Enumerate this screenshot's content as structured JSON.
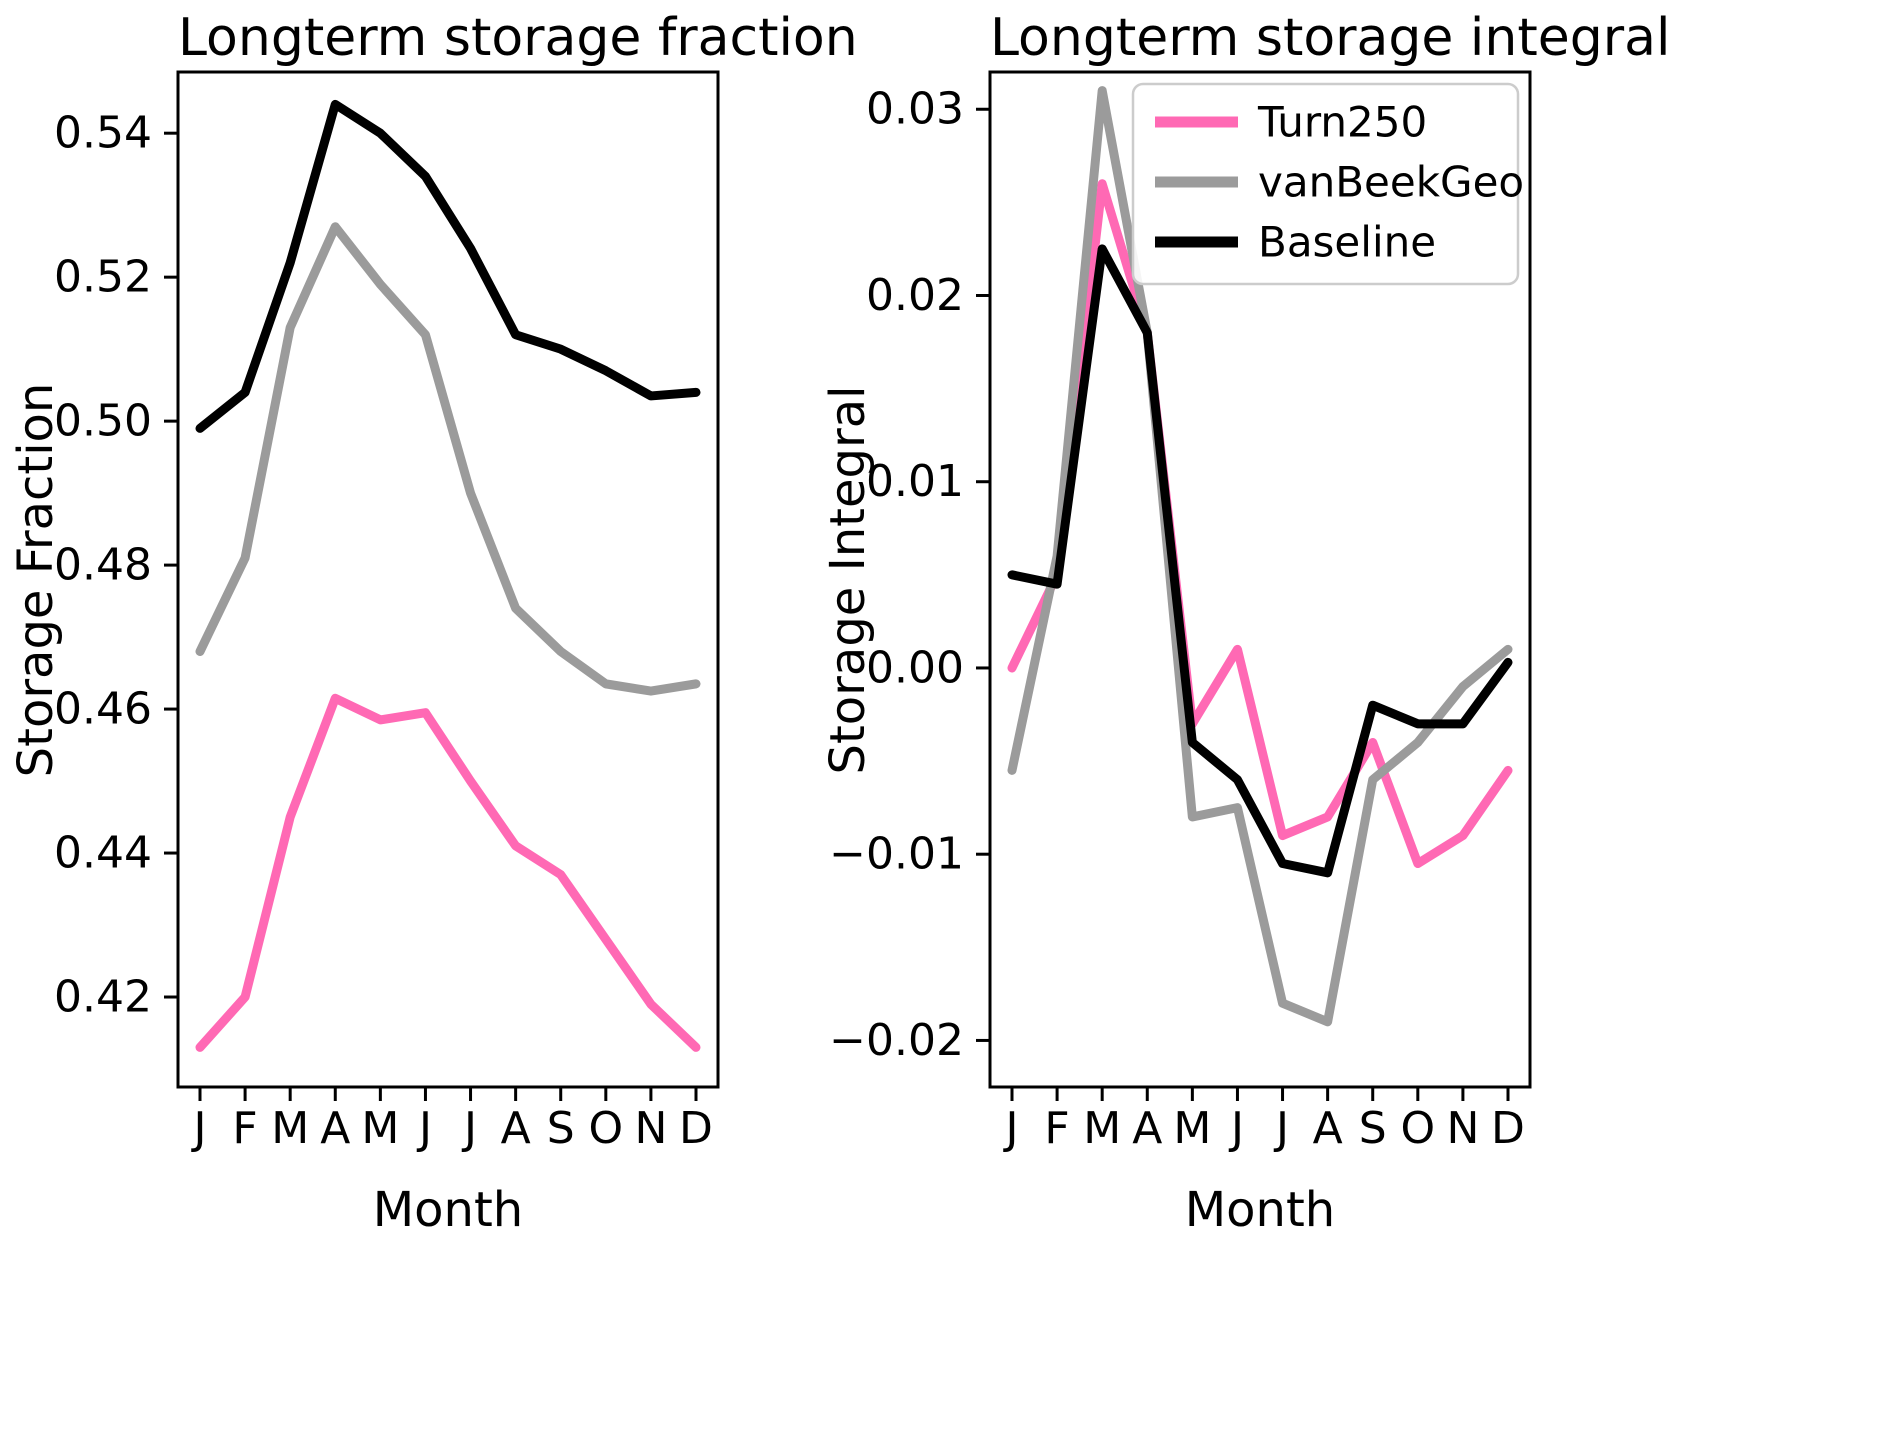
{
  "background": "#ffffff",
  "chart_data": [
    {
      "type": "line",
      "title": "Longterm storage fraction",
      "xlabel": "Month",
      "ylabel": "Storage Fraction",
      "categories": [
        "J",
        "F",
        "M",
        "A",
        "M",
        "J",
        "J",
        "A",
        "S",
        "O",
        "N",
        "D"
      ],
      "ylim": [
        0.4075,
        0.5485
      ],
      "grid": false,
      "legend": false,
      "yticks": [
        {
          "v": 0.42,
          "label": "0.42"
        },
        {
          "v": 0.44,
          "label": "0.44"
        },
        {
          "v": 0.46,
          "label": "0.46"
        },
        {
          "v": 0.48,
          "label": "0.48"
        },
        {
          "v": 0.5,
          "label": "0.50"
        },
        {
          "v": 0.52,
          "label": "0.52"
        },
        {
          "v": 0.54,
          "label": "0.54"
        }
      ],
      "series": [
        {
          "name": "Turn250",
          "color": "#FF69B4",
          "values": [
            0.413,
            0.42,
            0.445,
            0.4615,
            0.4585,
            0.4595,
            0.45,
            0.441,
            0.437,
            0.428,
            0.419,
            0.413
          ]
        },
        {
          "name": "vanBeekGeo",
          "color": "#9B9B9B",
          "values": [
            0.468,
            0.481,
            0.513,
            0.527,
            0.519,
            0.512,
            0.49,
            0.474,
            0.468,
            0.4635,
            0.4625,
            0.4635
          ]
        },
        {
          "name": "Baseline",
          "color": "#000000",
          "values": [
            0.499,
            0.504,
            0.522,
            0.544,
            0.54,
            0.534,
            0.524,
            0.512,
            0.51,
            0.507,
            0.5035,
            0.504
          ]
        }
      ]
    },
    {
      "type": "line",
      "title": "Longterm storage integral",
      "xlabel": "Month",
      "ylabel": "Storage Integral",
      "categories": [
        "J",
        "F",
        "M",
        "A",
        "M",
        "J",
        "J",
        "A",
        "S",
        "O",
        "N",
        "D"
      ],
      "ylim": [
        -0.0225,
        0.032
      ],
      "grid": false,
      "legend": true,
      "legend_position": "upper right",
      "yticks": [
        {
          "v": -0.02,
          "label": "−0.02"
        },
        {
          "v": -0.01,
          "label": "−0.01"
        },
        {
          "v": 0.0,
          "label": "0.00"
        },
        {
          "v": 0.01,
          "label": "0.01"
        },
        {
          "v": 0.02,
          "label": "0.02"
        },
        {
          "v": 0.03,
          "label": "0.03"
        }
      ],
      "series": [
        {
          "name": "Turn250",
          "color": "#FF69B4",
          "values": [
            0.0,
            0.005,
            0.026,
            0.018,
            -0.003,
            0.001,
            -0.009,
            -0.008,
            -0.004,
            -0.0105,
            -0.009,
            -0.0055
          ]
        },
        {
          "name": "vanBeekGeo",
          "color": "#9B9B9B",
          "values": [
            -0.0055,
            0.006,
            0.031,
            0.018,
            -0.008,
            -0.0075,
            -0.018,
            -0.019,
            -0.006,
            -0.004,
            -0.001,
            0.001
          ]
        },
        {
          "name": "Baseline",
          "color": "#000000",
          "values": [
            0.005,
            0.0045,
            0.0225,
            0.018,
            -0.004,
            -0.006,
            -0.0105,
            -0.011,
            -0.002,
            -0.003,
            -0.003,
            0.0003
          ]
        }
      ]
    }
  ]
}
